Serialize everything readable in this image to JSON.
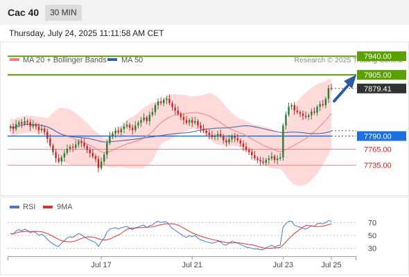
{
  "header": {
    "symbol": "Cac 40",
    "interval": "30 MIN"
  },
  "datetime": "Thursday, July 24, 2025 11:11:58 AM CET",
  "legend": {
    "bollinger": "MA 20 + Bollinger Bands",
    "ma50": "MA 50",
    "rsi": "RSI",
    "rsi_ma": "9MA"
  },
  "copyright": "Research © 2025 Trading Central",
  "colors": {
    "bollinger": "#f08080",
    "band_fill": "#fdd5d5",
    "ma50": "#3b5da8",
    "resistance": "#5aa000",
    "pivot": "#1e6fe0",
    "support": "#f08080",
    "support_text": "#d62020",
    "last_price": "#333333",
    "up_candle": "#2e7d32",
    "down_candle": "#c62828",
    "rsi": "#4a76d0",
    "rsi_ma": "#e03030",
    "arrow": "#2e5aa0"
  },
  "chart_data": [
    {
      "type": "candlestick",
      "ylim": [
        7680,
        7965
      ],
      "levels": [
        {
          "value": 7940.0,
          "label": "7940.00",
          "kind": "resistance"
        },
        {
          "value": 7905.0,
          "label": "7905.00",
          "kind": "resistance"
        },
        {
          "value": 7879.41,
          "label": "7879.41",
          "kind": "last"
        },
        {
          "value": 7790.0,
          "label": "7790.00",
          "kind": "pivot"
        },
        {
          "value": 7765.0,
          "label": "7765.00",
          "kind": "support"
        },
        {
          "value": 7735.0,
          "label": "7735.00",
          "kind": "support"
        }
      ],
      "x_ticks": [
        {
          "index": 32,
          "label": "Jul 17"
        },
        {
          "index": 64,
          "label": "Jul 21"
        },
        {
          "index": 96,
          "label": "Jul 23"
        },
        {
          "index": 113,
          "label": "Jul 25"
        }
      ],
      "closes": [
        7808,
        7803,
        7812,
        7816,
        7813,
        7818,
        7816,
        7808,
        7812,
        7808,
        7801,
        7804,
        7798,
        7785,
        7772,
        7760,
        7748,
        7742,
        7750,
        7758,
        7766,
        7770,
        7768,
        7774,
        7780,
        7777,
        7771,
        7764,
        7758,
        7752,
        7747,
        7730,
        7742,
        7755,
        7777,
        7790,
        7795,
        7800,
        7797,
        7803,
        7808,
        7811,
        7806,
        7801,
        7810,
        7815,
        7820,
        7825,
        7818,
        7830,
        7835,
        7848,
        7855,
        7852,
        7858,
        7860,
        7852,
        7844,
        7838,
        7832,
        7826,
        7820,
        7815,
        7820,
        7815,
        7818,
        7810,
        7804,
        7800,
        7796,
        7792,
        7788,
        7790,
        7794,
        7790,
        7782,
        7778,
        7784,
        7790,
        7786,
        7782,
        7776,
        7770,
        7764,
        7760,
        7754,
        7748,
        7745,
        7742,
        7740,
        7745,
        7748,
        7752,
        7745,
        7748,
        7750,
        7810,
        7830,
        7845,
        7848,
        7838,
        7835,
        7832,
        7828,
        7826,
        7829,
        7836,
        7834,
        7845,
        7850,
        7848,
        7860,
        7880,
        7879.41
      ]
    },
    {
      "type": "line",
      "ylim": [
        20,
        80
      ],
      "y_ticks": [
        70,
        50,
        30
      ],
      "rsi": [
        53,
        52,
        57,
        59,
        57,
        60,
        58,
        54,
        56,
        54,
        50,
        52,
        49,
        44,
        40,
        37,
        34,
        33,
        38,
        42,
        46,
        48,
        47,
        50,
        53,
        51,
        48,
        45,
        43,
        41,
        39,
        33,
        40,
        46,
        55,
        60,
        61,
        62,
        60,
        62,
        63,
        64,
        61,
        59,
        62,
        63,
        65,
        66,
        62,
        65,
        66,
        70,
        72,
        70,
        71,
        71,
        66,
        61,
        58,
        55,
        52,
        49,
        47,
        50,
        48,
        50,
        46,
        43,
        42,
        40,
        39,
        38,
        39,
        41,
        40,
        36,
        35,
        38,
        41,
        40,
        38,
        36,
        34,
        32,
        31,
        30,
        29,
        29,
        28,
        28,
        31,
        33,
        35,
        32,
        34,
        35,
        63,
        68,
        72,
        72,
        66,
        64,
        63,
        61,
        60,
        62,
        65,
        64,
        68,
        69,
        68,
        70,
        73,
        72
      ]
    }
  ]
}
